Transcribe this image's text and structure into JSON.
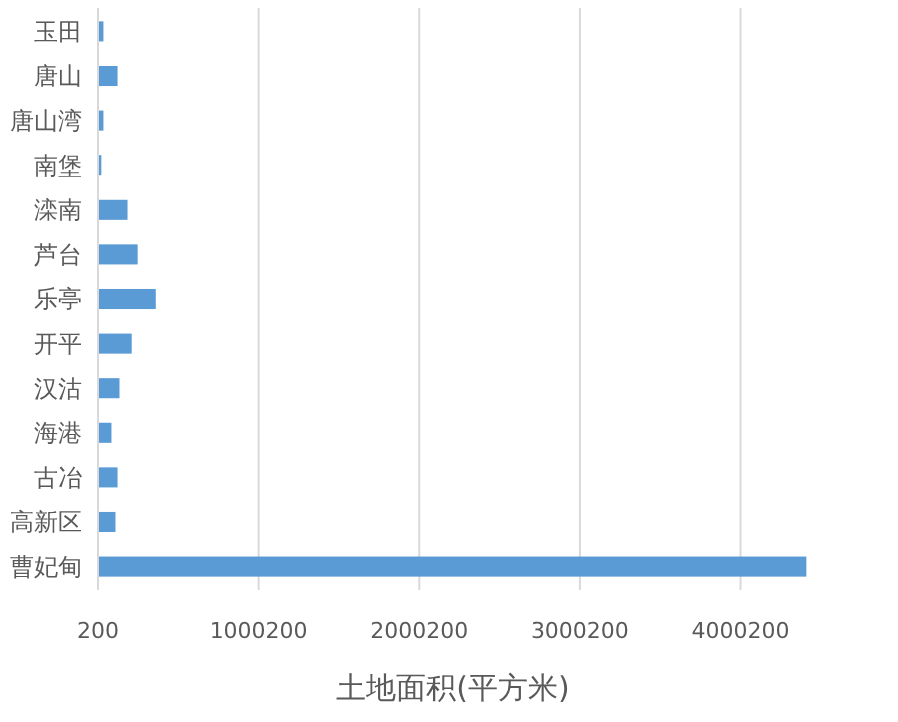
{
  "chart_data": {
    "type": "bar",
    "orientation": "horizontal",
    "xlabel": "土地面积(平方米)",
    "categories": [
      "玉田",
      "唐山",
      "唐山湾",
      "南堡",
      "滦南",
      "芦台",
      "乐亭",
      "开平",
      "汉沽",
      "海港",
      "古冶",
      "高新区",
      "曹妃甸"
    ],
    "values": [
      34000,
      122000,
      34000,
      21000,
      184000,
      247000,
      360000,
      210000,
      134000,
      84000,
      122000,
      109000,
      4410000
    ],
    "color": "#5b9bd5",
    "xlim": [
      200,
      4420200
    ],
    "xticks": [
      200,
      1000200,
      2000200,
      3000200,
      4000200
    ],
    "grid": "x"
  }
}
